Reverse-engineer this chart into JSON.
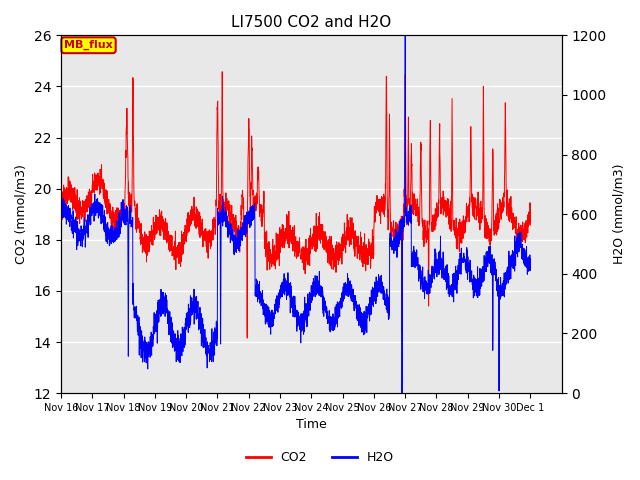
{
  "title": "LI7500 CO2 and H2O",
  "xlabel": "Time",
  "ylabel_left": "CO2 (mmol/m3)",
  "ylabel_right": "H2O (mmol/m3)",
  "co2_color": "#ff0000",
  "h2o_color": "#0000ff",
  "co2_ylim": [
    12,
    26
  ],
  "h2o_ylim": [
    0,
    1200
  ],
  "co2_yticks": [
    12,
    14,
    16,
    18,
    20,
    22,
    24,
    26
  ],
  "h2o_yticks": [
    0,
    200,
    400,
    600,
    800,
    1000,
    1200
  ],
  "xtick_labels": [
    "Nov 16",
    "Nov 17",
    "Nov 18",
    "Nov 19",
    "Nov 20",
    "Nov 21",
    "Nov 22",
    "Nov 23",
    "Nov 24",
    "Nov 25",
    "Nov 26",
    "Nov 27",
    "Nov 28",
    "Nov 29",
    "Nov 30",
    "Dec 1"
  ],
  "background_color": "#ffffff",
  "plot_bg_color": "#e8e8e8",
  "grid_color": "#ffffff",
  "legend_label_co2": "CO2",
  "legend_label_h2o": "H2O",
  "annotation_text": "MB_flux",
  "annotation_bg": "#ffff00",
  "annotation_border": "#cc0000",
  "co2_base_level": 18.5,
  "h2o_base_level": 550,
  "figsize": [
    6.4,
    4.8
  ],
  "dpi": 100
}
